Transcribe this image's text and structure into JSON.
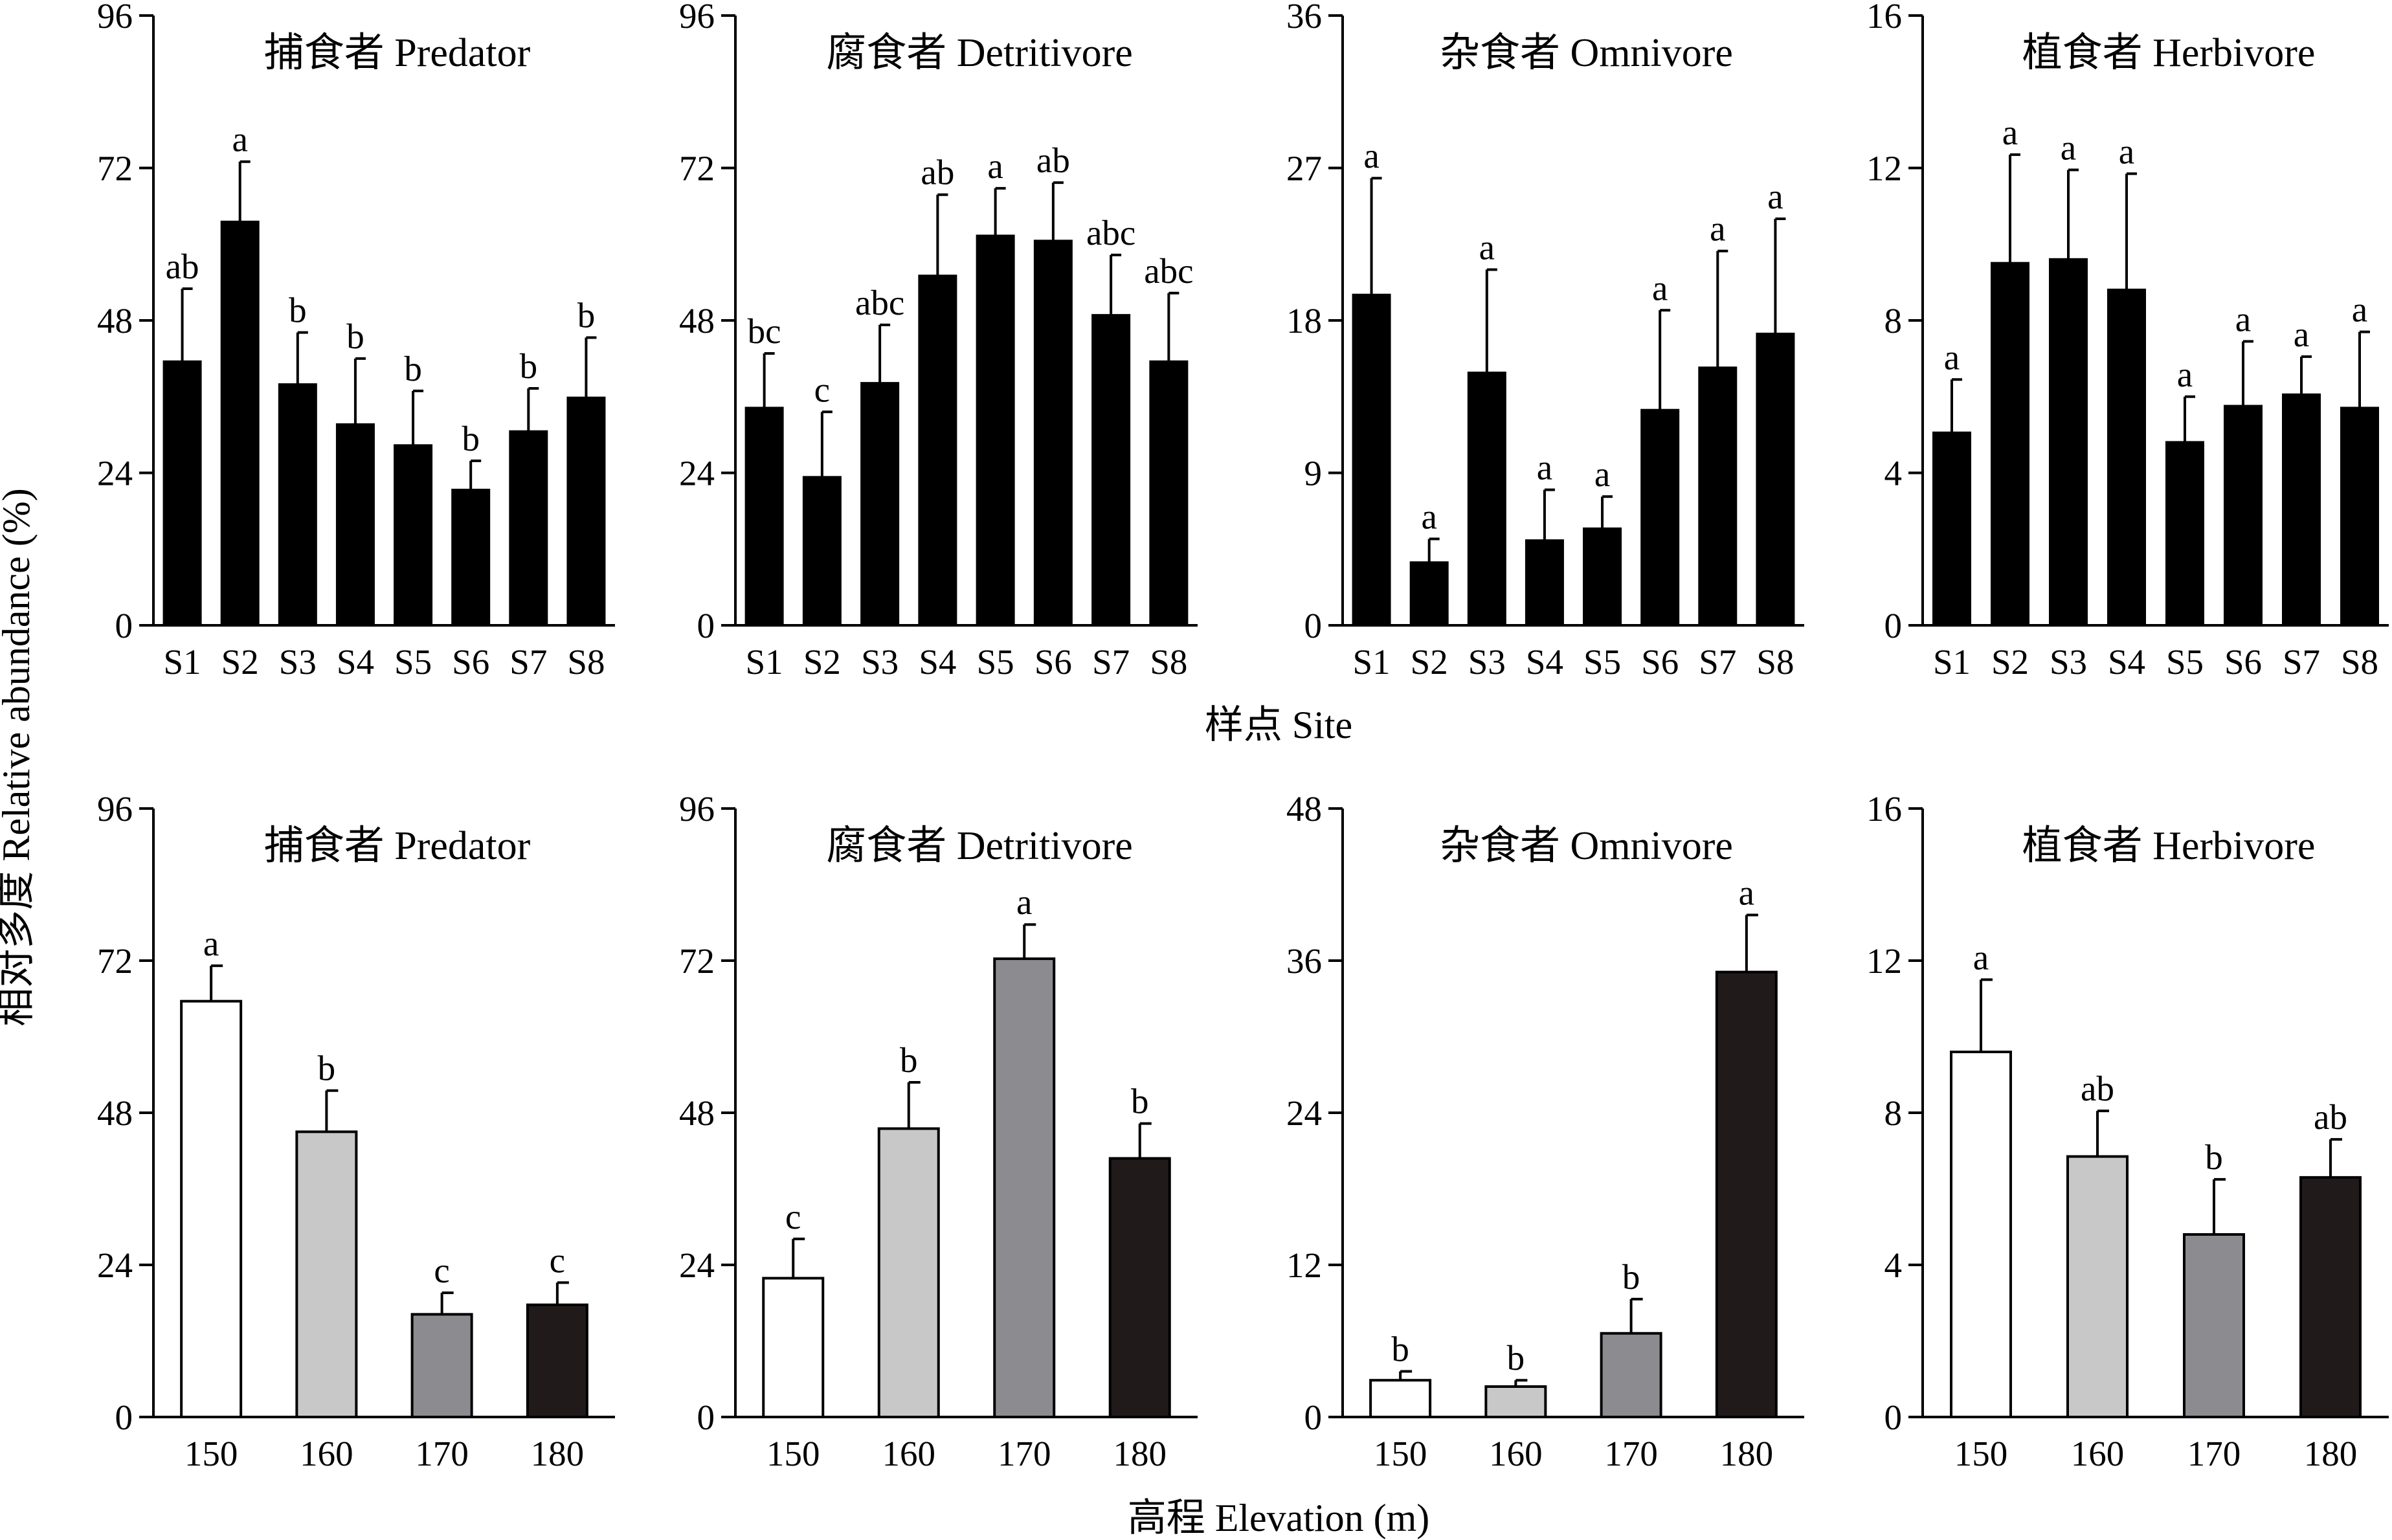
{
  "figure": {
    "ylabel": "相对多度 Relative abundance (%)",
    "row1_xlabel": "样点 Site",
    "row2_xlabel": "高程 Elevation (m)"
  },
  "colors": {
    "site_bar": "#000000",
    "elev_150": "#ffffff",
    "elev_160": "#c8c8c8",
    "elev_170": "#8c8b90",
    "elev_180": "#201a1a",
    "axis": "#000000"
  },
  "chart_data": [
    {
      "type": "bar",
      "title": "捕食者 Predator",
      "xlabel": "样点 Site",
      "ylabel": "相对多度 Relative abundance (%)",
      "ylim": [
        0,
        96
      ],
      "yticks": [
        "0",
        "24",
        "48",
        "72",
        "96"
      ],
      "categories": [
        "S1",
        "S2",
        "S3",
        "S4",
        "S5",
        "S6",
        "S7",
        "S8"
      ],
      "values": [
        41.5,
        63.5,
        37.9,
        31.6,
        28.3,
        21.3,
        30.5,
        35.8
      ],
      "errors": [
        11.5,
        9.5,
        8.2,
        10.4,
        8.6,
        4.6,
        6.8,
        9.5
      ],
      "labels": [
        "ab",
        "a",
        "b",
        "b",
        "b",
        "b",
        "b",
        "b"
      ]
    },
    {
      "type": "bar",
      "title": "腐食者 Detritivore",
      "xlabel": "样点 Site",
      "ylabel": "相对多度 Relative abundance (%)",
      "ylim": [
        0,
        96
      ],
      "yticks": [
        "0",
        "24",
        "48",
        "72",
        "96"
      ],
      "categories": [
        "S1",
        "S2",
        "S3",
        "S4",
        "S5",
        "S6",
        "S7",
        "S8"
      ],
      "values": [
        34.2,
        23.3,
        38.1,
        55.0,
        61.3,
        60.5,
        48.8,
        41.5
      ],
      "errors": [
        8.6,
        10.3,
        9.2,
        12.8,
        7.5,
        9.2,
        9.5,
        10.8
      ],
      "labels": [
        "bc",
        "c",
        "abc",
        "ab",
        "a",
        "ab",
        "abc",
        "abc"
      ]
    },
    {
      "type": "bar",
      "title": "杂食者 Omnivore",
      "xlabel": "样点 Site",
      "ylabel": "相对多度 Relative abundance (%)",
      "ylim": [
        0,
        36
      ],
      "yticks": [
        "0",
        "9",
        "18",
        "27",
        "36"
      ],
      "categories": [
        "S1",
        "S2",
        "S3",
        "S4",
        "S5",
        "S6",
        "S7",
        "S8"
      ],
      "values": [
        19.5,
        3.7,
        14.9,
        5.0,
        5.7,
        12.7,
        15.2,
        17.2
      ],
      "errors": [
        6.9,
        1.4,
        6.1,
        3.0,
        1.9,
        5.9,
        6.9,
        6.8
      ],
      "labels": [
        "a",
        "a",
        "a",
        "a",
        "a",
        "a",
        "a",
        "a"
      ]
    },
    {
      "type": "bar",
      "title": "植食者 Herbivore",
      "xlabel": "样点 Site",
      "ylabel": "相对多度 Relative abundance (%)",
      "ylim": [
        0,
        16
      ],
      "yticks": [
        "0",
        "4",
        "8",
        "12",
        "16"
      ],
      "categories": [
        "S1",
        "S2",
        "S3",
        "S4",
        "S5",
        "S6",
        "S7",
        "S8"
      ],
      "values": [
        5.05,
        9.5,
        9.6,
        8.8,
        4.8,
        5.75,
        6.05,
        5.7
      ],
      "errors": [
        1.4,
        2.85,
        2.35,
        3.05,
        1.2,
        1.7,
        1.0,
        2.0
      ],
      "labels": [
        "a",
        "a",
        "a",
        "a",
        "a",
        "a",
        "a",
        "a"
      ]
    },
    {
      "type": "bar",
      "title": "捕食者 Predator",
      "xlabel": "高程 Elevation (m)",
      "ylabel": "相对多度 Relative abundance (%)",
      "ylim": [
        0,
        96
      ],
      "yticks": [
        "0",
        "24",
        "48",
        "72",
        "96"
      ],
      "categories": [
        "150",
        "160",
        "170",
        "180"
      ],
      "values": [
        65.6,
        45.0,
        16.2,
        17.7
      ],
      "errors": [
        5.6,
        6.5,
        3.4,
        3.5
      ],
      "labels": [
        "a",
        "b",
        "c",
        "c"
      ]
    },
    {
      "type": "bar",
      "title": "腐食者 Detritivore",
      "xlabel": "高程 Elevation (m)",
      "ylabel": "相对多度 Relative abundance (%)",
      "ylim": [
        0,
        96
      ],
      "yticks": [
        "0",
        "24",
        "48",
        "72",
        "96"
      ],
      "categories": [
        "150",
        "160",
        "170",
        "180"
      ],
      "values": [
        21.9,
        45.5,
        72.3,
        40.8
      ],
      "errors": [
        6.2,
        7.3,
        5.4,
        5.5
      ],
      "labels": [
        "c",
        "b",
        "a",
        "b"
      ]
    },
    {
      "type": "bar",
      "title": "杂食者 Omnivore",
      "xlabel": "高程 Elevation (m)",
      "ylabel": "相对多度 Relative abundance (%)",
      "ylim": [
        0,
        48
      ],
      "yticks": [
        "0",
        "12",
        "24",
        "36",
        "48"
      ],
      "categories": [
        "150",
        "160",
        "170",
        "180"
      ],
      "values": [
        2.9,
        2.4,
        6.6,
        35.1
      ],
      "errors": [
        0.7,
        0.5,
        2.7,
        4.5
      ],
      "labels": [
        "b",
        "b",
        "b",
        "a"
      ]
    },
    {
      "type": "bar",
      "title": "植食者 Herbivore",
      "xlabel": "高程 Elevation (m)",
      "ylabel": "相对多度 Relative abundance (%)",
      "ylim": [
        0,
        16
      ],
      "yticks": [
        "0",
        "4",
        "8",
        "12",
        "16"
      ],
      "categories": [
        "150",
        "160",
        "170",
        "180"
      ],
      "values": [
        9.6,
        6.85,
        4.8,
        6.3
      ],
      "errors": [
        1.9,
        1.2,
        1.45,
        1.0
      ],
      "labels": [
        "a",
        "ab",
        "b",
        "ab"
      ]
    }
  ]
}
